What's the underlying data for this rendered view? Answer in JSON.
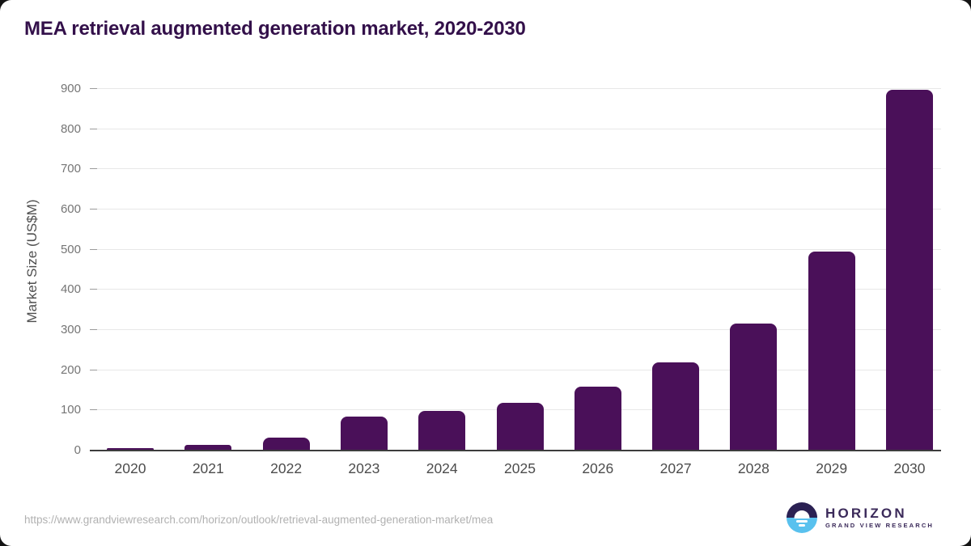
{
  "page": {
    "title": "MEA retrieval augmented generation market, 2020-2030",
    "footer": {
      "source_url": "https://www.grandviewresearch.com/horizon/outlook/retrieval-augmented-generation-market/mea",
      "logo": {
        "brand": "HORIZON",
        "tagline": "GRAND VIEW RESEARCH"
      }
    }
  },
  "chart_data": {
    "type": "bar",
    "title": "MEA retrieval augmented generation market, 2020-2030",
    "categories": [
      "2020",
      "2021",
      "2022",
      "2023",
      "2024",
      "2025",
      "2026",
      "2027",
      "2028",
      "2029",
      "2030"
    ],
    "values": [
      7,
      14,
      33,
      85,
      98,
      119,
      159,
      220,
      317,
      495,
      897
    ],
    "xlabel": "",
    "ylabel": "Market Size (US$M)",
    "ylim": [
      0,
      900
    ],
    "yticks": [
      0,
      100,
      200,
      300,
      400,
      500,
      600,
      700,
      800,
      900
    ],
    "grid": true,
    "legend": false,
    "bar_color": "#4a1059"
  },
  "colors": {
    "bar": "#4a1059",
    "title": "#33104a",
    "axis_line": "#3d3d3d",
    "gridline": "#e8e8e8",
    "tick": "#9b9b9b",
    "y_tick_label": "#757575",
    "x_tick_label": "#4c4c4c",
    "source_url": "#b1b1b1",
    "logo_dark": "#2b2153",
    "logo_blue": "#59c1ee",
    "logo_text": "#3b2a5a"
  }
}
